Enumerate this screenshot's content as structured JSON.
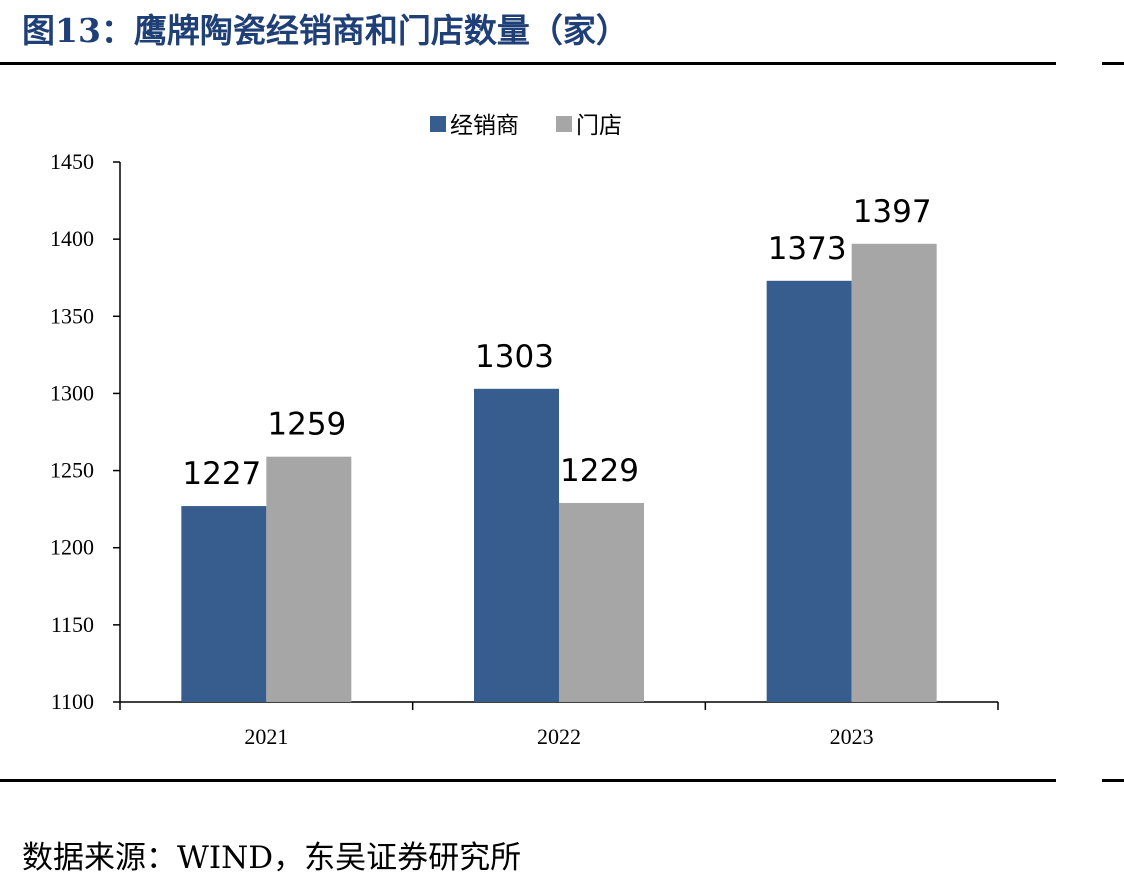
{
  "header": {
    "title": "图13：鹰牌陶瓷经销商和门店数量（家）"
  },
  "footer": {
    "source": "数据来源：WIND，东吴证券研究所"
  },
  "colors": {
    "dealer": "#375d8f",
    "store": "#a6a6a6",
    "title": "#1f3f77"
  },
  "chart_data": {
    "type": "bar",
    "categories": [
      "2021",
      "2022",
      "2023"
    ],
    "series": [
      {
        "name": "经销商",
        "values": [
          1227,
          1303,
          1373
        ]
      },
      {
        "name": "门店",
        "values": [
          1259,
          1229,
          1397
        ]
      }
    ],
    "title": "",
    "xlabel": "",
    "ylabel": "",
    "ylim": [
      1100,
      1450
    ],
    "yticks": [
      1100,
      1150,
      1200,
      1250,
      1300,
      1350,
      1400,
      1450
    ],
    "grid": false,
    "legend_position": "top-center"
  }
}
